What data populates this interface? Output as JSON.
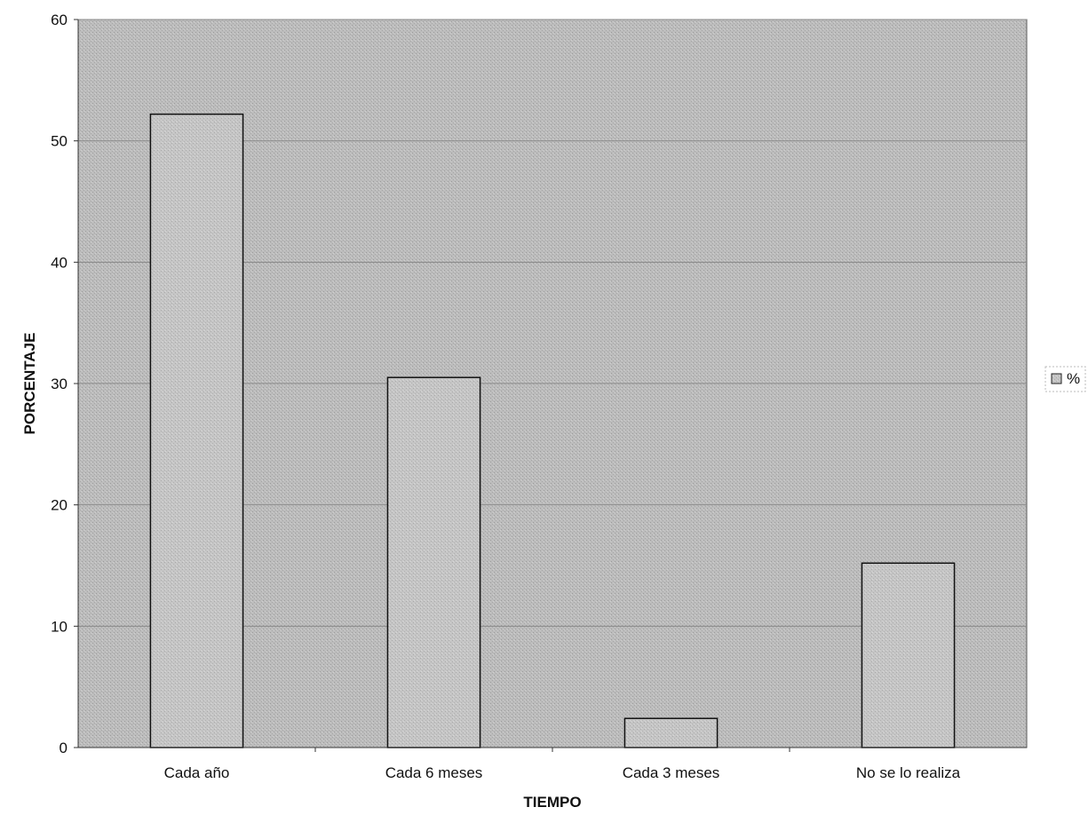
{
  "chart_data": {
    "type": "bar",
    "title": "",
    "xlabel": "TIEMPO",
    "ylabel": "PORCENTAJE",
    "categories": [
      "Cada año",
      "Cada 6 meses",
      "Cada 3 meses",
      "No se lo realiza"
    ],
    "series": [
      {
        "name": "%",
        "values": [
          52.2,
          30.5,
          2.4,
          15.2
        ]
      }
    ],
    "ylim": [
      0,
      60
    ],
    "yticks": [
      0,
      10,
      20,
      30,
      40,
      50,
      60
    ],
    "grid": true,
    "legend_position": "right",
    "colors": {
      "plot_background": "#bdbdbd",
      "bar_fill": "#c8c8c8",
      "bar_stroke": "#111111",
      "gridline": "#8a8a8a"
    }
  }
}
